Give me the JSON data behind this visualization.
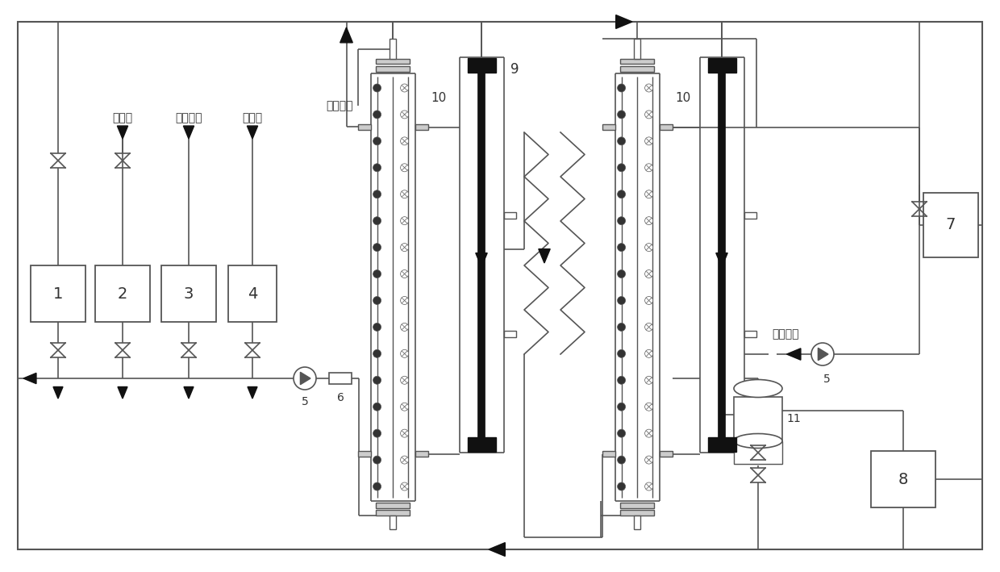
{
  "bg": "#ffffff",
  "lc": "#555555",
  "dc": "#111111",
  "gray": "#aaaaaa",
  "label_yijiyou": "一级油",
  "label_micangmaoyou": "米糧毛油",
  "label_huanchonglye": "缓冲液",
  "label_reshuichukou": "热水出口",
  "label_reshuirukou": "热水入口"
}
